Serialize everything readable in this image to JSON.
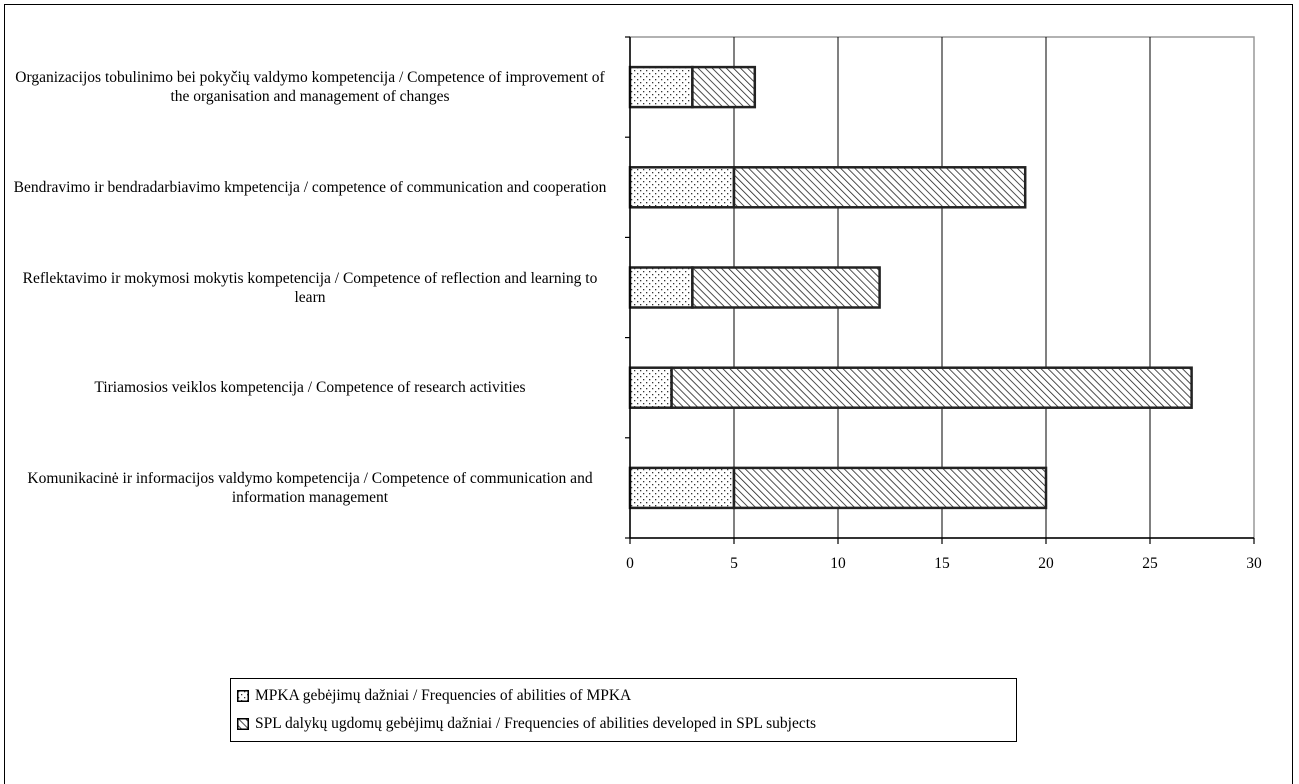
{
  "chart_data": {
    "type": "bar",
    "orientation": "horizontal",
    "stacked": true,
    "categories": [
      "Organizacijos tobulinimo bei pokyčių valdymo kompetencija / Competence of improvement of the organisation and management of changes",
      "Bendravimo ir bendradarbiavimo kmpetencija / competence of communication and cooperation",
      "Reflektavimo ir mokymosi mokytis kompetencija / Competence of reflection and learning to learn",
      "Tiriamosios veiklos kompetencija /  Competence of research activities",
      "Komunikacinė ir informacijos valdymo kompetencija  / Competence of communication and information management"
    ],
    "series": [
      {
        "name": "MPKA gebėjimų dažniai / Frequencies of abilities of MPKA",
        "values": [
          3,
          5,
          3,
          2,
          5
        ],
        "pattern": "dots"
      },
      {
        "name": "SPL dalykų ugdomų gebėjimų dažniai / Frequencies of abilities developed in SPL subjects",
        "values": [
          3,
          14,
          9,
          25,
          15
        ],
        "pattern": "diagonal-hatch"
      }
    ],
    "xlim": [
      0,
      30
    ],
    "xticks": [
      "0",
      "5",
      "10",
      "15",
      "20",
      "25",
      "30"
    ],
    "grid": "vertical",
    "legend_position": "bottom",
    "title": "",
    "xlabel": "",
    "ylabel": ""
  }
}
